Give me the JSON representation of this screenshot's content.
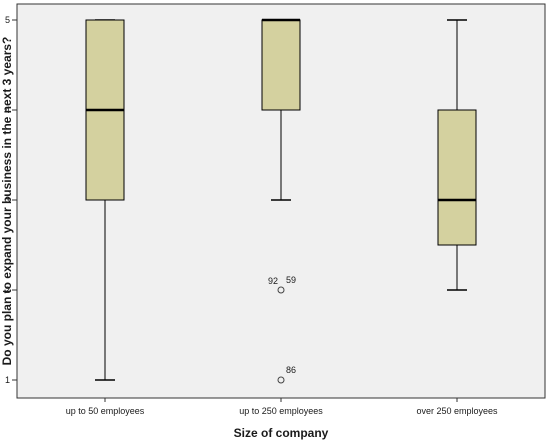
{
  "chart_data": {
    "type": "boxplot",
    "xlabel": "Size of company",
    "ylabel": "Do you plan to expand your business in the next 3 years?",
    "ylim": [
      1,
      5
    ],
    "yticks": [
      1,
      2,
      3,
      4,
      5
    ],
    "grid": false,
    "categories": [
      "up to 50 employees",
      "up to 250 employees",
      "over 250 employees"
    ],
    "boxes": [
      {
        "category": "up to 50 employees",
        "min": 1,
        "q1": 3,
        "median": 4,
        "q3": 5,
        "max": 5,
        "outliers": []
      },
      {
        "category": "up to 250 employees",
        "min": 3,
        "q1": 4,
        "median": 5,
        "q3": 5,
        "max": 5,
        "outliers": [
          {
            "value": 2,
            "label": "92"
          },
          {
            "value": 2,
            "label": "59"
          },
          {
            "value": 1,
            "label": "86"
          }
        ]
      },
      {
        "category": "over 250 employees",
        "min": 2,
        "q1": 2.5,
        "median": 3,
        "q3": 4,
        "max": 5,
        "outliers": []
      }
    ]
  },
  "colors": {
    "box_fill": "#d4d19f",
    "plot_background": "#f0f0f0",
    "line": "#000000",
    "median": "#000000",
    "outlier": "#444444"
  }
}
